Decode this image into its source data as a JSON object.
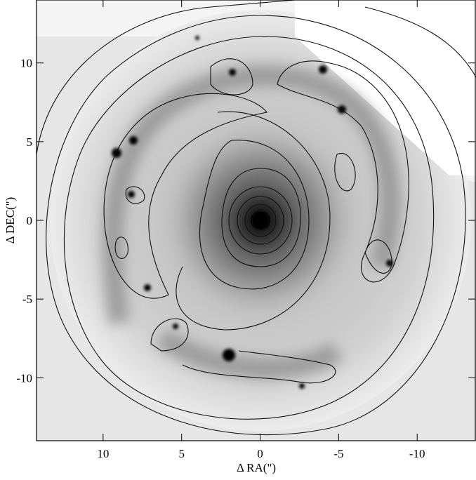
{
  "chart_data": {
    "type": "image",
    "xlabel": "Δ RA(\")",
    "ylabel": "Δ DEC(\")",
    "xlim": [
      14.24,
      -13.7
    ],
    "xticks": [
      10,
      5,
      0,
      -5,
      -10
    ],
    "ylim": [
      -14,
      14
    ],
    "yticks": [
      -10,
      -5,
      0,
      5,
      10
    ]
  }
}
